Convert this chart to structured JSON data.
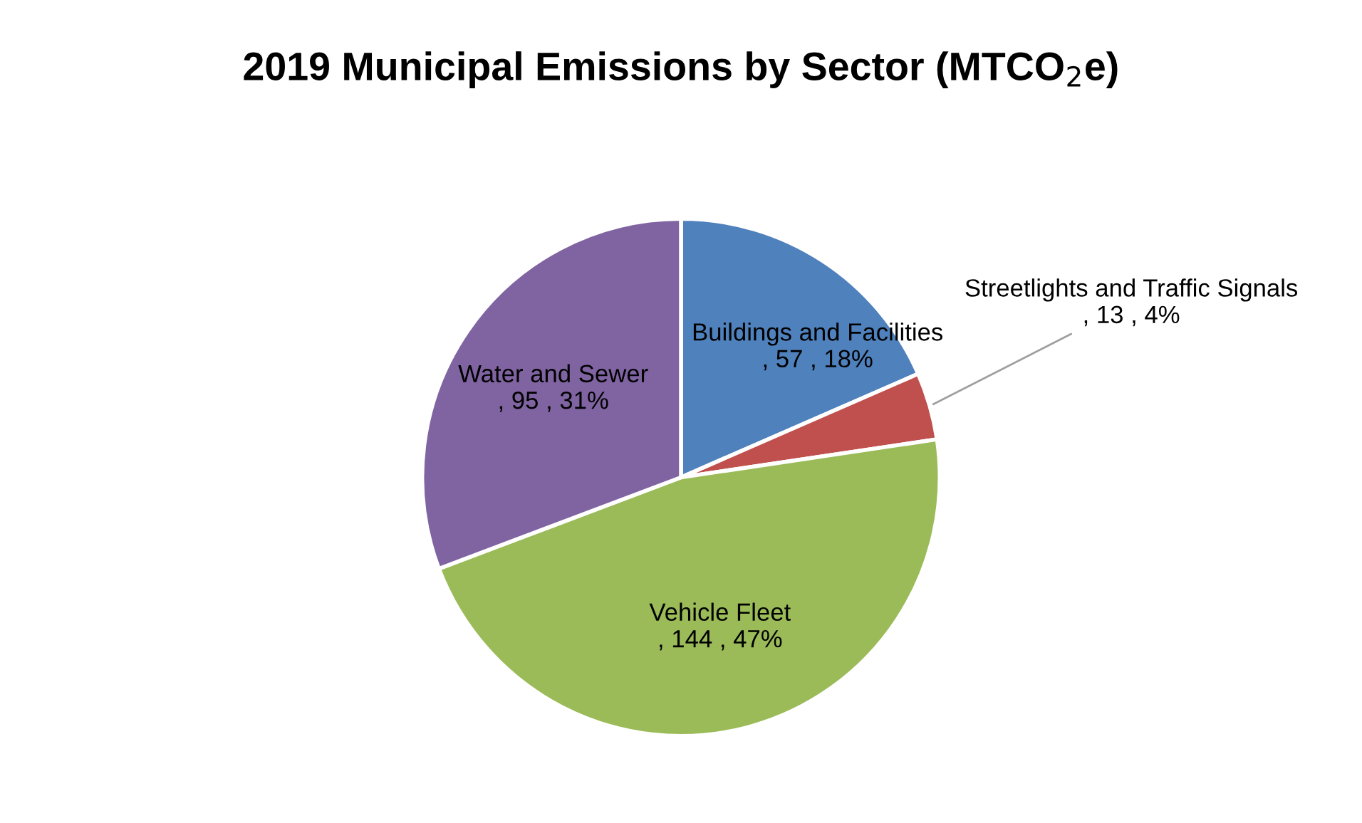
{
  "chart_data": {
    "type": "pie",
    "title": "2019 Municipal Emissions by Sector (MTCO$_{2}$e)",
    "categories": [
      "Buildings and Facilities",
      "Streetlights and Traffic Signals",
      "Vehicle Fleet",
      "Water and Sewer"
    ],
    "values": [
      57,
      13,
      144,
      95
    ],
    "colors": [
      "#4f81bd",
      "#c0504d",
      "#9bbb59",
      "#8064a2"
    ],
    "value_labels": [
      ", 57 , 18%",
      ", 13 , 4%",
      ", 144 , 47%",
      ", 95 , 31%"
    ]
  }
}
